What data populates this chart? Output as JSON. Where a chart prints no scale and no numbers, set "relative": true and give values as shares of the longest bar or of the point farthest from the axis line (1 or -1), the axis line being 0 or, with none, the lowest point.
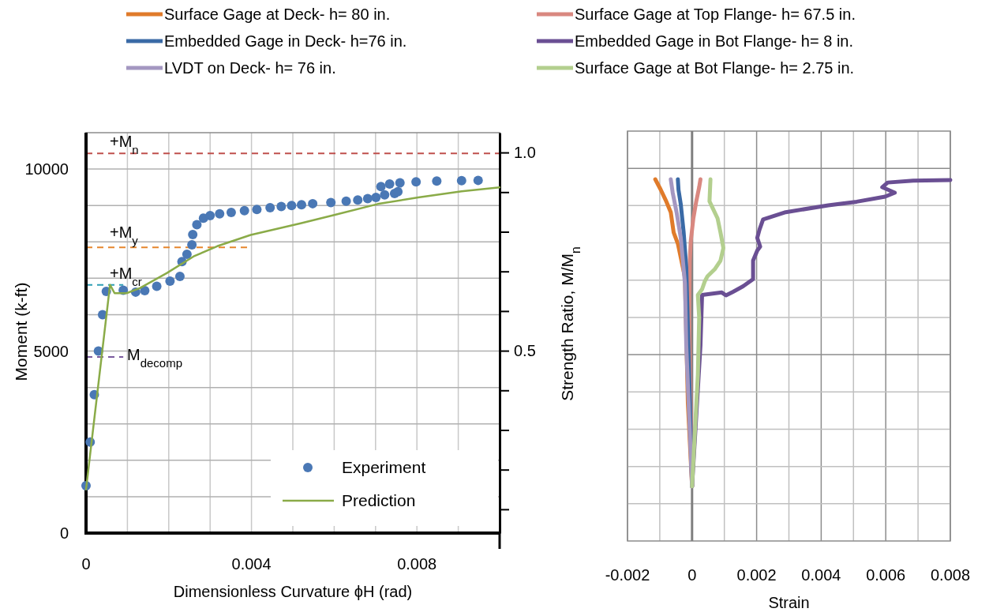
{
  "chart_data": [
    {
      "type": "scatter",
      "xlabel": "Dimensionless Curvature ϕH (rad)",
      "ylabel": "Moment (k-ft)",
      "xlim": [
        0,
        0.01
      ],
      "xticks": [
        0,
        {
          "value": 0.001,
          "label": null
        },
        {
          "value": 0.002,
          "label": null
        },
        {
          "value": 0.003,
          "label": null
        },
        0.004,
        {
          "value": 0.005,
          "label": null
        },
        {
          "value": 0.006,
          "label": null
        },
        {
          "value": 0.007,
          "label": null
        },
        0.008,
        {
          "value": 0.009,
          "label": null
        }
      ],
      "ylim": [
        0,
        11000
      ],
      "yticks": [
        0,
        {
          "value": 1000,
          "label": null
        },
        {
          "value": 2000,
          "label": null
        },
        {
          "value": 3000,
          "label": null
        },
        {
          "value": 4000,
          "label": null
        },
        5000,
        {
          "value": 6000,
          "label": null
        },
        {
          "value": 7000,
          "label": null
        },
        {
          "value": 8000,
          "label": null
        },
        {
          "value": 9000,
          "label": null
        },
        10000
      ],
      "y2lim": [
        0.04,
        1.05
      ],
      "y2ticks": [
        {
          "value": 0.1,
          "label": null
        },
        {
          "value": 0.2,
          "label": null
        },
        {
          "value": 0.3,
          "label": null
        },
        {
          "value": 0.4,
          "label": null
        },
        0.5,
        {
          "value": 0.6,
          "label": null
        },
        {
          "value": 0.7,
          "label": null
        },
        {
          "value": 0.8,
          "label": null
        },
        {
          "value": 0.9,
          "label": null
        },
        {
          "value": 1,
          "label": "1.0"
        }
      ],
      "grid": true,
      "legend": "bottom right",
      "ref_lines": [
        {
          "axis": "y",
          "value": 10430,
          "label": "+M$_{n}$",
          "color": "#c0504d",
          "line_style": "dashed"
        },
        {
          "axis": "y",
          "value": 7850,
          "label": "+M$_{y}$",
          "color": "#e6862e",
          "line_style": "dashed"
        },
        {
          "axis": "y",
          "value": 6820,
          "label": "+M$_{cr}$",
          "color": "#2e9eb5",
          "line_style": "dashed"
        },
        {
          "axis": "y",
          "value": 4840,
          "label": "M$_{decomp}$",
          "color": "#7a5a9e",
          "line_style": "dashed"
        }
      ],
      "series": [
        {
          "name": "Experiment",
          "type": "scatter",
          "marker": "circle",
          "color": "#4a78b5",
          "x": [
            0,
            0.0001,
            0.0002,
            0.0003,
            0.0004,
            0.00049,
            0.0009,
            0.0012,
            0.00142,
            0.00171,
            0.00203,
            0.00227,
            0.00232,
            0.00244,
            0.00256,
            0.00258,
            0.00268,
            0.00284,
            0.003,
            0.00323,
            0.00351,
            0.00383,
            0.00413,
            0.00445,
            0.00472,
            0.00497,
            0.00521,
            0.00548,
            0.00592,
            0.00629,
            0.00657,
            0.00681,
            0.00701,
            0.00722,
            0.00746,
            0.00754,
            0.00713,
            0.00734,
            0.00759,
            0.00798,
            0.00848,
            0.00908,
            0.00948
          ],
          "values": [
            1300,
            2500,
            3800,
            5000,
            6000,
            6640,
            6670,
            6620,
            6660,
            6780,
            6920,
            7050,
            7460,
            7660,
            7920,
            8200,
            8470,
            8650,
            8720,
            8770,
            8810,
            8860,
            8890,
            8940,
            8970,
            9000,
            9020,
            9050,
            9080,
            9120,
            9150,
            9190,
            9220,
            9290,
            9330,
            9380,
            9520,
            9590,
            9620,
            9650,
            9670,
            9680,
            9690
          ]
        },
        {
          "name": "Prediction",
          "type": "line",
          "marker": "none",
          "color": "#8aab48",
          "x": [
            0,
            0.00058,
            0.00069,
            0.00098,
            0.0013,
            0.00195,
            0.0026,
            0.00317,
            0.00398,
            0.00519,
            0.006,
            0.00705,
            0.00803,
            0.00908,
            0.01
          ],
          "values": [
            1200,
            6820,
            6590,
            6590,
            6730,
            7140,
            7600,
            7880,
            8190,
            8510,
            8740,
            9040,
            9220,
            9390,
            9500
          ]
        }
      ]
    },
    {
      "type": "line",
      "xlabel": "Strain",
      "ylabel": "Strength Ratio, M/M$_{n}$",
      "xlim": [
        -0.002,
        0.008
      ],
      "xticks": [
        -0.002,
        {
          "value": -0.001,
          "label": null
        },
        0,
        {
          "value": 0.001,
          "label": null
        },
        0.002,
        {
          "value": 0.003,
          "label": null
        },
        0.004,
        {
          "value": 0.005,
          "label": null
        },
        0.006,
        {
          "value": 0.007,
          "label": null
        },
        0.008
      ],
      "relative": true,
      "tick_labels": "x",
      "grid": true,
      "legend": "top",
      "series": [
        {
          "name": "Surface Gage at Deck- h= 80 in.",
          "color": "#e07b2a",
          "x": [
            0,
            -0.00013,
            -0.00022,
            -0.00044,
            -0.00057,
            -0.00066,
            -0.0008,
            -0.00097,
            -0.00114
          ],
          "values": [
            0.151,
            0.382,
            0.728,
            0.822,
            0.853,
            0.909,
            0.939,
            0.971,
            1
          ]
        },
        {
          "name": "Surface Gage at Top Flange- h= 67.5 in.",
          "color": "#d98880",
          "x": [
            0,
            -9e-05,
            -7e-05,
            -4e-05,
            4e-05,
            0.00013,
            0.00022,
            0.00026
          ],
          "values": [
            0.151,
            0.618,
            0.775,
            0.829,
            0.892,
            0.939,
            0.978,
            1
          ]
        },
        {
          "name": "Embedded Gage in Deck- h=76 in.",
          "color": "#3a6aa6",
          "x": [
            0,
            -9e-05,
            -0.00018,
            -0.00026,
            -0.00035,
            -0.00042,
            -0.00044
          ],
          "values": [
            0.151,
            0.46,
            0.758,
            0.853,
            0.931,
            0.971,
            1
          ]
        },
        {
          "name": "Embedded Gage in Bot Flange- h= 8 in.",
          "color": "#6a4f93",
          "x": [
            0,
            0.00026,
            0.00031,
            0.00092,
            0.00105,
            0.00127,
            0.00158,
            0.00189,
            0.00189,
            0.00202,
            0.00211,
            0.00202,
            0.00209,
            0.0022,
            0.0029,
            0.00422,
            0.0051,
            0.00598,
            0.00628,
            0.00589,
            0.00606,
            0.00685,
            0.008
          ],
          "values": [
            0.151,
            0.54,
            0.68,
            0.687,
            0.679,
            0.689,
            0.704,
            0.724,
            0.775,
            0.803,
            0.814,
            0.838,
            0.861,
            0.889,
            0.909,
            0.928,
            0.938,
            0.952,
            0.963,
            0.978,
            0.991,
            0.996,
            0.998
          ]
        },
        {
          "name": "LVDT on Deck- h= 76 in.",
          "color": "#a497c1",
          "x": [
            0,
            -0.00018,
            -0.00022,
            -0.00035,
            -0.00048,
            -0.0006,
            -0.00066
          ],
          "values": [
            0.151,
            0.54,
            0.712,
            0.838,
            0.909,
            0.963,
            1
          ]
        },
        {
          "name": "Surface Gage at Bot Flange- h= 2.75 in.",
          "color": "#b3cf8e",
          "x": [
            0,
            0.00018,
            0.00022,
            0.00018,
            0.00031,
            0.0004,
            0.00048,
            0.0007,
            0.00088,
            0.00097,
            0.00088,
            0.00079,
            0.00062,
            0.00054,
            0.00057
          ],
          "values": [
            0.151,
            0.46,
            0.618,
            0.68,
            0.696,
            0.719,
            0.732,
            0.751,
            0.775,
            0.81,
            0.853,
            0.892,
            0.924,
            0.939,
            1
          ]
        }
      ]
    }
  ]
}
